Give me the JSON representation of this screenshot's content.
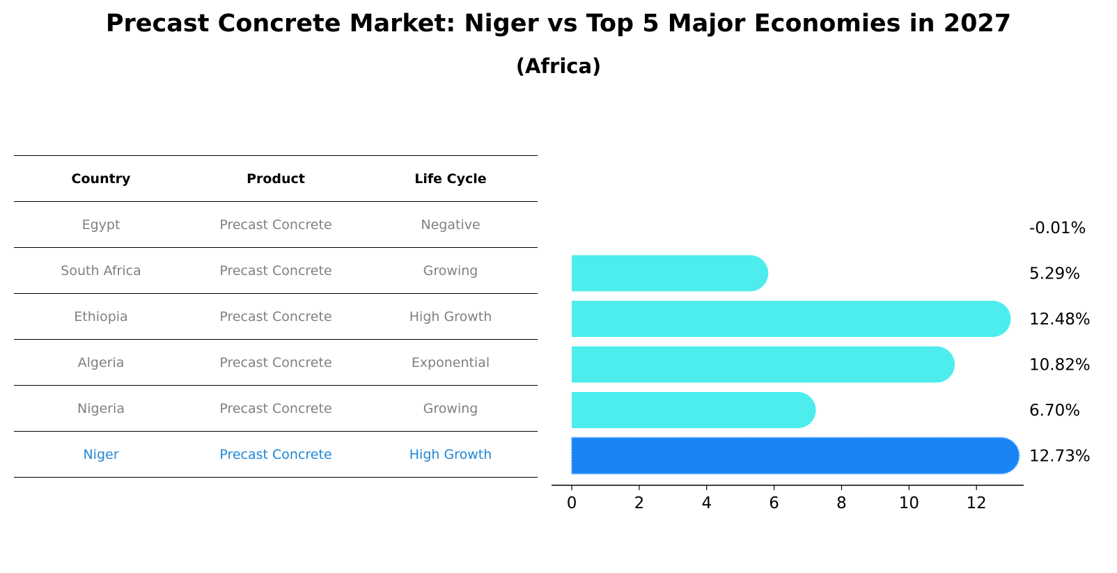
{
  "title": "Precast Concrete Market: Niger vs Top 5 Major Economies in 2027",
  "subtitle": "(Africa)",
  "table": {
    "headers": [
      "Country",
      "Product",
      "Life Cycle"
    ],
    "rows": [
      {
        "country": "Egypt",
        "product": "Precast Concrete",
        "life_cycle": "Negative"
      },
      {
        "country": "South Africa",
        "product": "Precast Concrete",
        "life_cycle": "Growing"
      },
      {
        "country": "Ethiopia",
        "product": "Precast Concrete",
        "life_cycle": "High Growth"
      },
      {
        "country": "Algeria",
        "product": "Precast Concrete",
        "life_cycle": "Exponential"
      },
      {
        "country": "Nigeria",
        "product": "Precast Concrete",
        "life_cycle": "Growing"
      },
      {
        "country": "Niger",
        "product": "Precast Concrete",
        "life_cycle": "High Growth"
      }
    ]
  },
  "colors": {
    "bar": "#4deded",
    "highlight": "#1a84f5",
    "highlight_text": "#1f86d6",
    "muted_text": "#808080"
  },
  "chart_data": {
    "type": "bar",
    "orientation": "horizontal",
    "categories": [
      "Egypt",
      "South Africa",
      "Ethiopia",
      "Algeria",
      "Nigeria",
      "Niger"
    ],
    "values": [
      -0.01,
      5.29,
      12.48,
      10.82,
      6.7,
      12.73
    ],
    "labels": [
      "-0.01%",
      "5.29%",
      "12.48%",
      "10.82%",
      "6.70%",
      "12.73%"
    ],
    "highlight": "Niger",
    "xlim": [
      -0.6,
      13.4
    ],
    "xticks": [
      0,
      2,
      4,
      6,
      8,
      10,
      12
    ],
    "grid": false
  }
}
